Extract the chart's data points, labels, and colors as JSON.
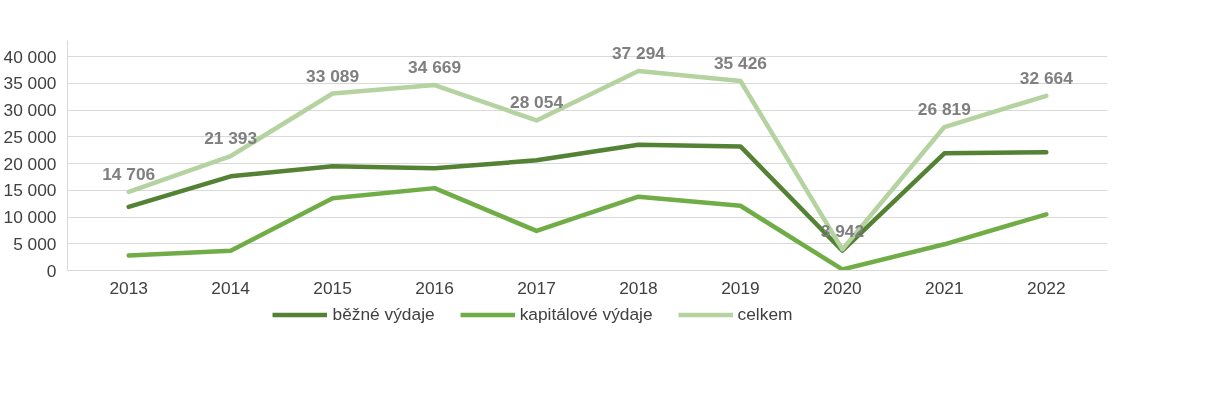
{
  "chart_data": {
    "type": "line",
    "categories": [
      "2013",
      "2014",
      "2015",
      "2016",
      "2017",
      "2018",
      "2019",
      "2020",
      "2021",
      "2022"
    ],
    "series": [
      {
        "name": "běžné výdaje",
        "color": "#548235",
        "values": [
          11900,
          17600,
          19500,
          19100,
          20600,
          23500,
          23200,
          3700,
          21900,
          22100
        ]
      },
      {
        "name": "kapitálové výdaje",
        "color": "#70ad47",
        "values": [
          2800,
          3700,
          13500,
          15400,
          7400,
          13800,
          12100,
          200,
          4900,
          10500
        ]
      },
      {
        "name": "celkem",
        "color": "#b4d3a0",
        "values": [
          14706,
          21393,
          33089,
          34669,
          28054,
          37294,
          35426,
          3942,
          26819,
          32664
        ],
        "value_labels": [
          "14 706",
          "21 393",
          "33 089",
          "34 669",
          "28 054",
          "37 294",
          "35 426",
          "3 942",
          "26 819",
          "32 664"
        ]
      }
    ],
    "ylim": [
      0,
      43000
    ],
    "yticks": [
      {
        "value": 0,
        "label": "0"
      },
      {
        "value": 5000,
        "label": "5 000"
      },
      {
        "value": 10000,
        "label": "10 000"
      },
      {
        "value": 15000,
        "label": "15 000"
      },
      {
        "value": 20000,
        "label": "20 000"
      },
      {
        "value": 25000,
        "label": "25 000"
      },
      {
        "value": 30000,
        "label": "30 000"
      },
      {
        "value": 35000,
        "label": "35 000"
      },
      {
        "value": 40000,
        "label": "40 000"
      }
    ],
    "grid": "y",
    "legend": "bottom",
    "marker": "none",
    "line_style": "solid"
  }
}
